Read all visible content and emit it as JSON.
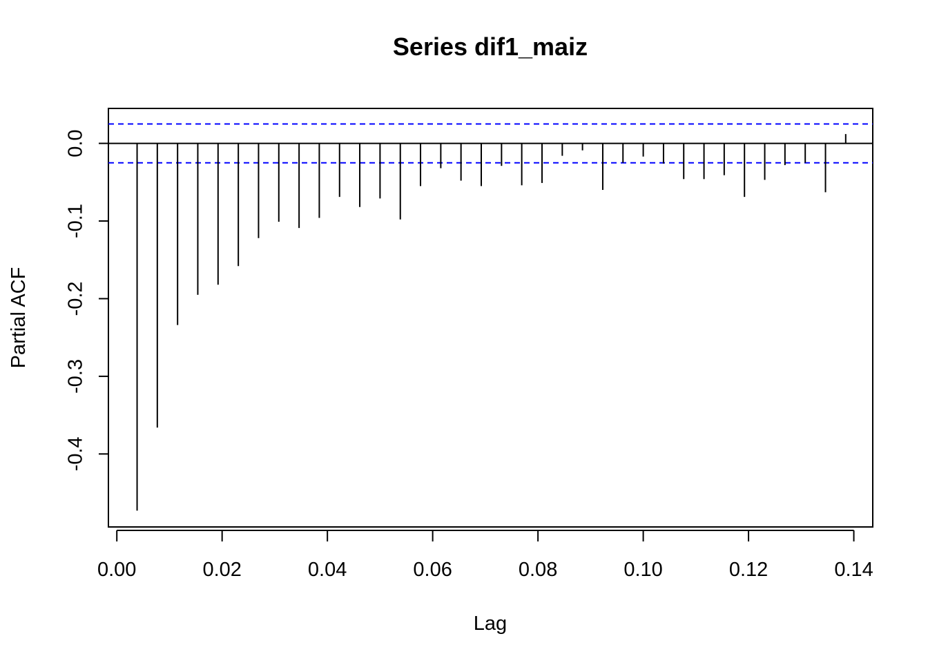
{
  "chart_data": {
    "type": "bar",
    "title": "Series  dif1_maiz",
    "xlabel": "Lag",
    "ylabel": "Partial ACF",
    "xlim": [
      -0.0016,
      0.1436
    ],
    "ylim": [
      -0.494,
      0.045
    ],
    "x_ticks": [
      0.0,
      0.02,
      0.04,
      0.06,
      0.08,
      0.1,
      0.12,
      0.14
    ],
    "x_tick_labels": [
      "0.00",
      "0.02",
      "0.04",
      "0.06",
      "0.08",
      "0.10",
      "0.12",
      "0.14"
    ],
    "y_ticks": [
      0.0,
      -0.1,
      -0.2,
      -0.3,
      -0.4
    ],
    "y_tick_labels": [
      "0.0",
      "-0.1",
      "-0.2",
      "-0.3",
      "-0.4"
    ],
    "confidence_limits": [
      0.025,
      -0.025
    ],
    "grid": false,
    "lags": [
      0.00385,
      0.00769,
      0.01154,
      0.01538,
      0.01923,
      0.02308,
      0.02692,
      0.03077,
      0.03462,
      0.03846,
      0.04231,
      0.04615,
      0.05,
      0.05385,
      0.05769,
      0.06154,
      0.06538,
      0.06923,
      0.07308,
      0.07692,
      0.08077,
      0.08462,
      0.08846,
      0.09231,
      0.09615,
      0.1,
      0.10385,
      0.10769,
      0.11154,
      0.11538,
      0.11923,
      0.12308,
      0.12692,
      0.13077,
      0.13462,
      0.13846
    ],
    "values": [
      -0.473,
      -0.366,
      -0.234,
      -0.195,
      -0.182,
      -0.158,
      -0.122,
      -0.101,
      -0.109,
      -0.096,
      -0.069,
      -0.082,
      -0.071,
      -0.098,
      -0.055,
      -0.032,
      -0.048,
      -0.055,
      -0.029,
      -0.054,
      -0.051,
      -0.016,
      -0.009,
      -0.06,
      -0.025,
      -0.017,
      -0.026,
      -0.046,
      -0.046,
      -0.041,
      -0.069,
      -0.047,
      -0.028,
      -0.025,
      -0.063,
      0.012
    ],
    "colors": {
      "bars": "#000000",
      "confidence_lines": "#0000ff",
      "zero_line": "#000000"
    }
  }
}
